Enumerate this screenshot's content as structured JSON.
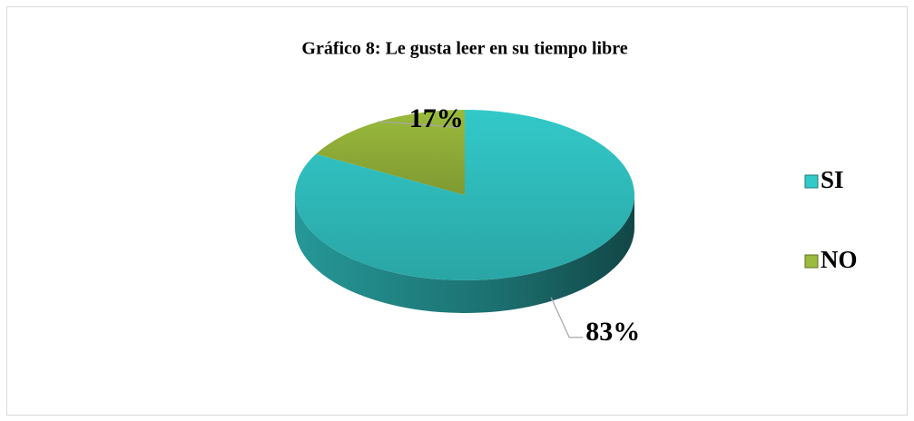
{
  "chart_data": {
    "type": "pie",
    "title": "Gráfico 8: Le gusta leer en su tiempo libre",
    "categories": [
      "SI",
      "NO"
    ],
    "values": [
      83,
      17
    ],
    "value_labels": [
      "83%",
      "17%"
    ],
    "colors": [
      "#33c9c9",
      "#9bbb3c"
    ],
    "legend": "right"
  }
}
